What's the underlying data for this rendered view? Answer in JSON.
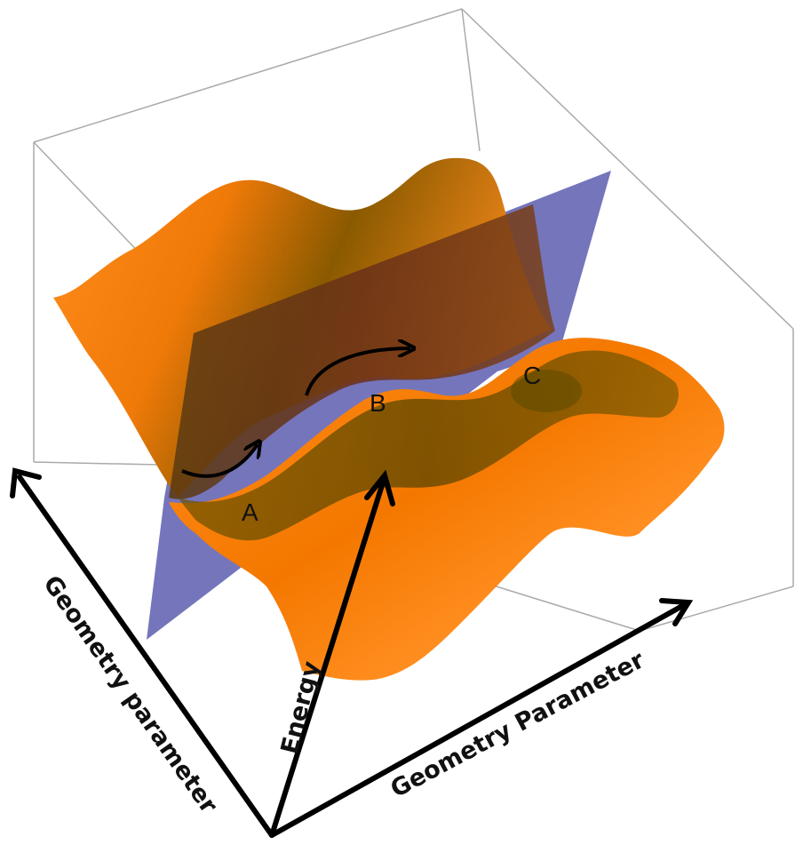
{
  "axes": {
    "left_label": "Geometry parameter",
    "right_label": "Geometry Parameter",
    "vertical_label": "Energy"
  },
  "points": {
    "a": "A",
    "b": "B",
    "c": "C"
  },
  "colors": {
    "surface_light": "#ff8a1a",
    "surface_mid": "#e86a00",
    "surface_dark": "#5a4a00",
    "surface_trough": "#3a2a10",
    "plane": "#6e6eb8",
    "box_line": "#aaaaaa",
    "arrow": "#000000"
  }
}
